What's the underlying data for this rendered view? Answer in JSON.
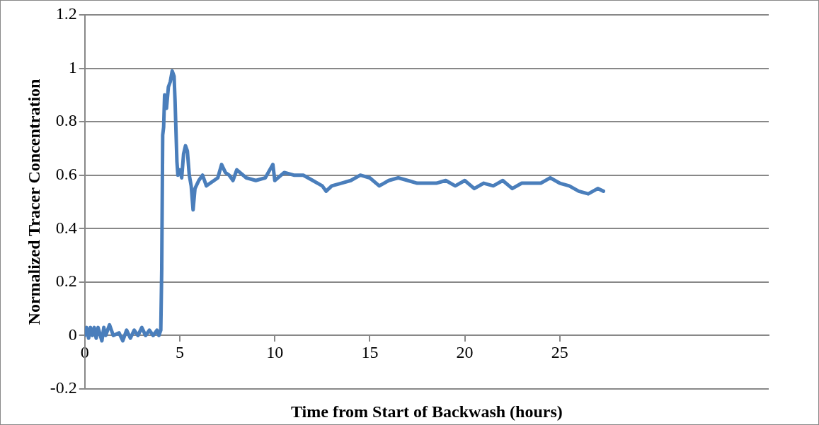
{
  "chart_data": {
    "type": "line",
    "xlabel": "Time from Start of Backwash (hours)",
    "ylabel": "Normalized Tracer Concentration",
    "xlim": [
      0,
      36
    ],
    "xticks": [
      0,
      5,
      10,
      15,
      20,
      25
    ],
    "ylim": [
      -0.2,
      1.2
    ],
    "yticks": [
      -0.2,
      0,
      0.2,
      0.4,
      0.6,
      0.8,
      1,
      1.2
    ],
    "grid": "y",
    "marker": "none",
    "line_style": "solid",
    "series": [
      {
        "color": "#4a7ebb",
        "x": [
          0,
          0.1,
          0.2,
          0.3,
          0.4,
          0.5,
          0.6,
          0.7,
          0.9,
          1.0,
          1.1,
          1.3,
          1.5,
          1.8,
          2.0,
          2.2,
          2.4,
          2.6,
          2.8,
          3.0,
          3.2,
          3.4,
          3.6,
          3.8,
          3.9,
          4.0,
          4.05,
          4.1,
          4.15,
          4.2,
          4.3,
          4.4,
          4.5,
          4.6,
          4.7,
          4.75,
          4.85,
          4.9,
          5.0,
          5.1,
          5.2,
          5.3,
          5.4,
          5.5,
          5.6,
          5.7,
          5.8,
          6.0,
          6.2,
          6.4,
          6.6,
          6.8,
          7.0,
          7.2,
          7.4,
          7.6,
          7.8,
          8.0,
          8.5,
          9,
          9.5,
          9.9,
          10,
          10.5,
          11,
          11.5,
          12,
          12.5,
          12.7,
          13,
          13.5,
          14,
          14.5,
          15,
          15.5,
          16,
          16.5,
          17,
          17.5,
          18,
          18.5,
          19,
          19.5,
          20,
          20.5,
          21,
          21.5,
          22,
          22.5,
          23,
          23.5,
          24,
          24.5,
          25,
          25.5,
          26,
          26.5,
          27,
          27.3
        ],
        "values": [
          0,
          0.03,
          -0.01,
          0.03,
          0,
          0.03,
          -0.01,
          0.03,
          -0.02,
          0.03,
          0,
          0.04,
          0,
          0.01,
          -0.02,
          0.02,
          -0.01,
          0.02,
          0,
          0.03,
          0,
          0.02,
          0,
          0.02,
          0,
          0.02,
          0.25,
          0.75,
          0.78,
          0.9,
          0.85,
          0.93,
          0.95,
          0.99,
          0.97,
          0.88,
          0.65,
          0.6,
          0.62,
          0.59,
          0.68,
          0.71,
          0.69,
          0.6,
          0.56,
          0.47,
          0.55,
          0.58,
          0.6,
          0.56,
          0.57,
          0.58,
          0.59,
          0.64,
          0.61,
          0.6,
          0.58,
          0.62,
          0.59,
          0.58,
          0.59,
          0.64,
          0.58,
          0.61,
          0.6,
          0.6,
          0.58,
          0.56,
          0.54,
          0.56,
          0.57,
          0.58,
          0.6,
          0.59,
          0.56,
          0.58,
          0.59,
          0.58,
          0.57,
          0.57,
          0.57,
          0.58,
          0.56,
          0.58,
          0.55,
          0.57,
          0.56,
          0.58,
          0.55,
          0.57,
          0.57,
          0.57,
          0.59,
          0.57,
          0.56,
          0.54,
          0.53,
          0.55,
          0.54
        ]
      }
    ]
  }
}
